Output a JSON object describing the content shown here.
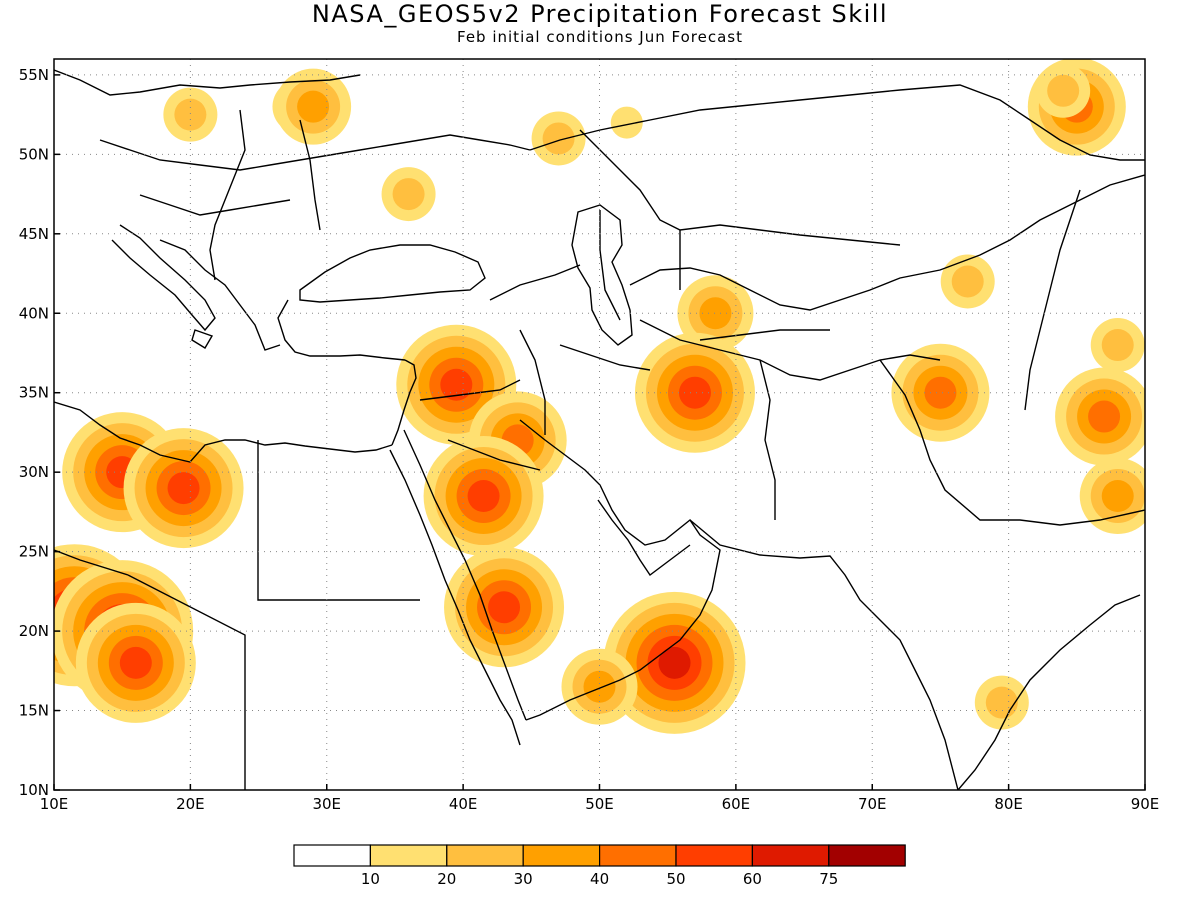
{
  "title": "NASA_GEOS5v2 Precipitation Forecast Skill",
  "subtitle": "Feb initial conditions  Jun Forecast",
  "map": {
    "lon_range": [
      10,
      90
    ],
    "lat_range": [
      10,
      56
    ],
    "lon_ticks": [
      {
        "value": 10,
        "label": "10E"
      },
      {
        "value": 20,
        "label": "20E"
      },
      {
        "value": 30,
        "label": "30E"
      },
      {
        "value": 40,
        "label": "40E"
      },
      {
        "value": 50,
        "label": "50E"
      },
      {
        "value": 60,
        "label": "60E"
      },
      {
        "value": 70,
        "label": "70E"
      },
      {
        "value": 80,
        "label": "80E"
      },
      {
        "value": 90,
        "label": "90E"
      }
    ],
    "lat_ticks": [
      {
        "value": 10,
        "label": "10N"
      },
      {
        "value": 15,
        "label": "15N"
      },
      {
        "value": 20,
        "label": "20N"
      },
      {
        "value": 25,
        "label": "25N"
      },
      {
        "value": 30,
        "label": "30N"
      },
      {
        "value": 35,
        "label": "35N"
      },
      {
        "value": 40,
        "label": "40N"
      },
      {
        "value": 45,
        "label": "45N"
      },
      {
        "value": 50,
        "label": "50N"
      },
      {
        "value": 55,
        "label": "55N"
      }
    ],
    "grid": "dotted",
    "skill_regions": [
      {
        "lon": 20,
        "lat": 52.5,
        "level": 2
      },
      {
        "lon": 28,
        "lat": 53,
        "level": 2
      },
      {
        "lon": 29,
        "lat": 53,
        "level": 3
      },
      {
        "lon": 36,
        "lat": 47.5,
        "level": 2
      },
      {
        "lon": 52,
        "lat": 52,
        "level": 1
      },
      {
        "lon": 47,
        "lat": 51,
        "level": 2
      },
      {
        "lon": 85,
        "lat": 53,
        "level": 4
      },
      {
        "lon": 84,
        "lat": 54,
        "level": 2
      },
      {
        "lon": 58.5,
        "lat": 40,
        "level": 3
      },
      {
        "lon": 57,
        "lat": 35,
        "level": 5
      },
      {
        "lon": 39.5,
        "lat": 35.5,
        "level": 5
      },
      {
        "lon": 44,
        "lat": 32,
        "level": 4
      },
      {
        "lon": 41.5,
        "lat": 28.5,
        "level": 5
      },
      {
        "lon": 43,
        "lat": 21.5,
        "level": 5
      },
      {
        "lon": 55.5,
        "lat": 18,
        "level": 6
      },
      {
        "lon": 50,
        "lat": 16.5,
        "level": 3
      },
      {
        "lon": 15,
        "lat": 30,
        "level": 5
      },
      {
        "lon": 19.5,
        "lat": 29,
        "level": 5
      },
      {
        "lon": 11.5,
        "lat": 21,
        "level": 6
      },
      {
        "lon": 15,
        "lat": 20,
        "level": 6
      },
      {
        "lon": 16,
        "lat": 18,
        "level": 5
      },
      {
        "lon": 75,
        "lat": 35,
        "level": 4
      },
      {
        "lon": 87,
        "lat": 33.5,
        "level": 4
      },
      {
        "lon": 88,
        "lat": 28.5,
        "level": 3
      },
      {
        "lon": 79.5,
        "lat": 15.5,
        "level": 2
      },
      {
        "lon": 77,
        "lat": 42,
        "level": 2
      },
      {
        "lon": 88,
        "lat": 38,
        "level": 2
      }
    ]
  },
  "colorbar": {
    "colors": [
      "#ffffff",
      "#ffe071",
      "#ffbf3f",
      "#ffa000",
      "#ff6f00",
      "#ff3e00",
      "#df1a00",
      "#a20000"
    ],
    "labels": [
      "10",
      "20",
      "30",
      "40",
      "50",
      "60",
      "75"
    ]
  }
}
